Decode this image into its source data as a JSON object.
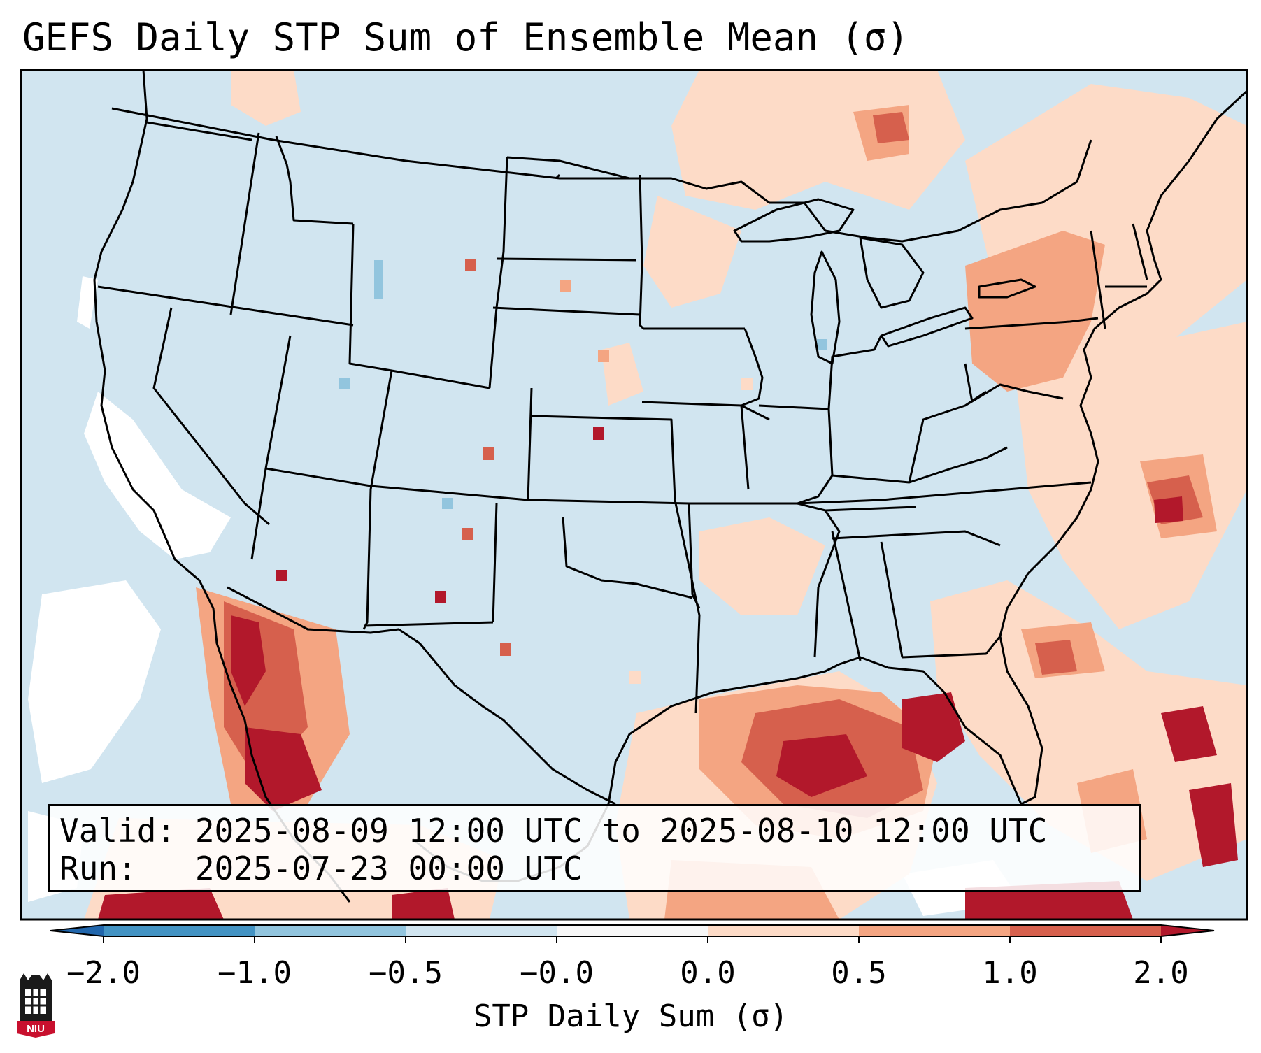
{
  "title": "GEFS Daily STP Sum of Ensemble Mean (σ)",
  "info": {
    "valid": "Valid: 2025-08-09 12:00 UTC to 2025-08-10 12:00 UTC",
    "run": "Run:   2025-07-23 00:00 UTC"
  },
  "colorbar": {
    "label": "STP Daily Sum (σ)",
    "ticks": [
      "−2.0",
      "−1.0",
      "−0.5",
      "−0.0",
      "0.0",
      "0.5",
      "1.0",
      "2.0"
    ],
    "colors": [
      "#4393c3",
      "#92c5de",
      "#d1e5f0",
      "#f7f7f7",
      "#fddbc7",
      "#f4a582",
      "#d6604d"
    ],
    "under_color": "#2166ac",
    "over_color": "#b2182b"
  },
  "logo": {
    "text": "NIU"
  },
  "colors": {
    "ocean": "#d1e5f0",
    "land": "#d1e5f0",
    "border": "#000000"
  }
}
